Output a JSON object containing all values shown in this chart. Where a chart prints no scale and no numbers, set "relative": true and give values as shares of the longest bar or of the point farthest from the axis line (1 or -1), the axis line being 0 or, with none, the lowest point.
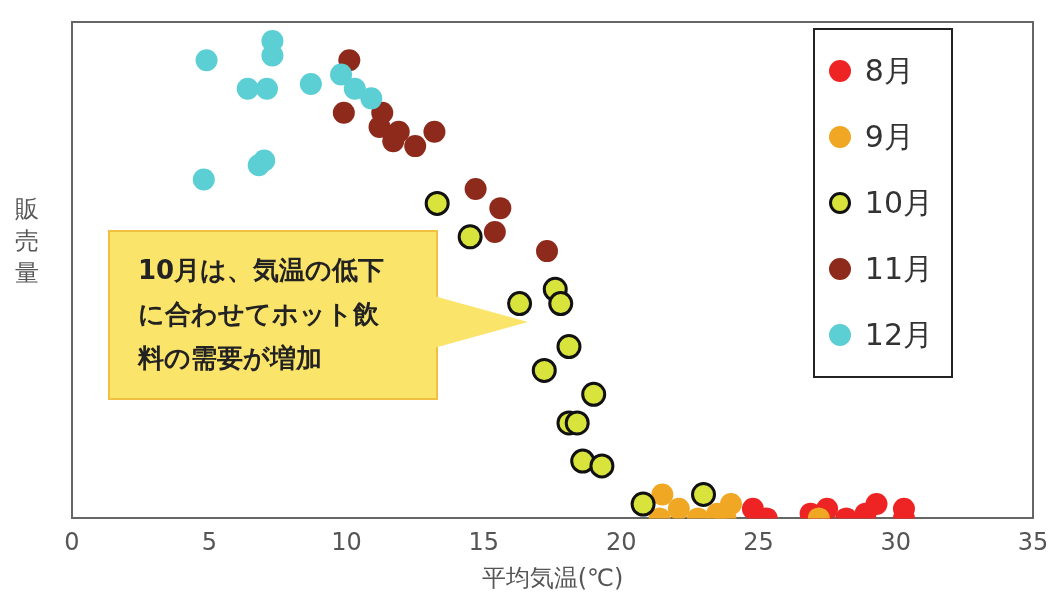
{
  "chart_data": {
    "type": "scatter",
    "relative": true,
    "xlabel": "平均気温(℃)",
    "ylabel": "販売量",
    "xlim": [
      0,
      35
    ],
    "xticks": [
      0,
      5,
      10,
      15,
      20,
      25,
      30,
      35
    ],
    "grid": false,
    "legend": "top right",
    "marker": "circle",
    "annotations": [
      "10月は、気温の低下に合わせてホット飲料の需要が増加"
    ],
    "series": [
      {
        "name": "8月",
        "color": "#ee2424",
        "x": [
          24.8,
          25.3,
          26.9,
          27.5,
          28.2,
          28.9,
          29.3,
          30.3,
          30.3
        ],
        "values": [
          0.02,
          0.0,
          0.01,
          0.02,
          0.0,
          0.01,
          0.03,
          0.02,
          0.0
        ]
      },
      {
        "name": "9月",
        "color": "#f0a824",
        "x": [
          21.5,
          21.4,
          22.1,
          22.8,
          23.5,
          24.0,
          23.8,
          27.2
        ],
        "values": [
          0.05,
          0.0,
          0.02,
          0.0,
          0.01,
          0.03,
          0.0,
          0.0
        ]
      },
      {
        "name": "10月",
        "color": "#d8e43c",
        "x": [
          13.3,
          14.5,
          16.3,
          17.6,
          17.8,
          18.1,
          17.2,
          19.0,
          18.1,
          18.4,
          18.6,
          19.3,
          20.8,
          23.0
        ],
        "values": [
          0.66,
          0.59,
          0.45,
          0.48,
          0.45,
          0.36,
          0.31,
          0.26,
          0.2,
          0.2,
          0.12,
          0.11,
          0.03,
          0.05
        ]
      },
      {
        "name": "11月",
        "color": "#8e2a1c",
        "x": [
          10.1,
          9.9,
          11.3,
          11.2,
          11.9,
          11.7,
          12.5,
          13.2,
          14.7,
          15.6,
          15.4,
          17.3
        ],
        "values": [
          0.96,
          0.85,
          0.85,
          0.82,
          0.81,
          0.79,
          0.78,
          0.81,
          0.69,
          0.65,
          0.6,
          0.56
        ]
      },
      {
        "name": "12月",
        "color": "#5ccfd4",
        "x": [
          4.9,
          7.3,
          7.3,
          6.4,
          7.1,
          8.7,
          9.8,
          10.3,
          10.9,
          7.0,
          6.8,
          4.8
        ],
        "values": [
          0.96,
          1.0,
          0.97,
          0.9,
          0.9,
          0.91,
          0.93,
          0.9,
          0.88,
          0.75,
          0.74,
          0.71
        ]
      }
    ]
  }
}
